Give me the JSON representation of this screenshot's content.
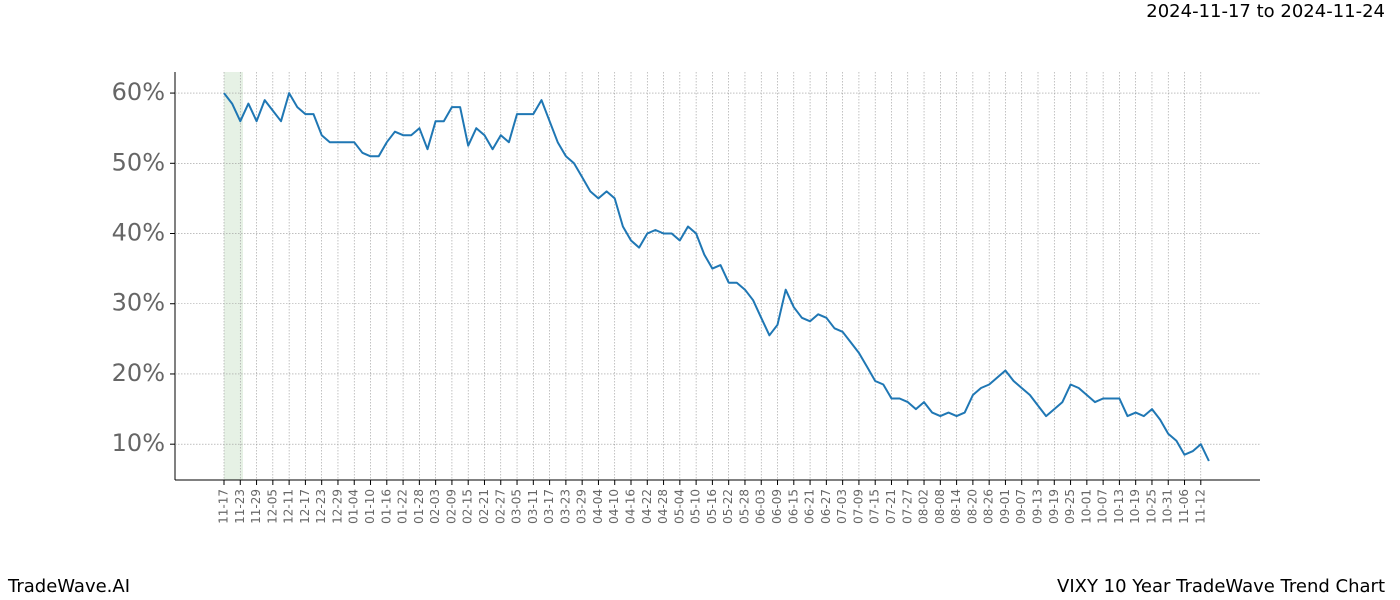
{
  "chart_data": {
    "type": "line",
    "title": "VIXY 10 Year TradeWave Trend Chart",
    "subtitle": "2024-11-17 to 2024-11-24",
    "brand": "TradeWave.AI",
    "categories": [
      "11-17",
      null,
      "11-23",
      null,
      "11-29",
      null,
      "12-05",
      null,
      "12-11",
      null,
      "12-17",
      null,
      "12-23",
      null,
      "12-29",
      null,
      "01-04",
      null,
      "01-10",
      null,
      "01-16",
      null,
      "01-22",
      null,
      "01-28",
      null,
      "02-03",
      null,
      "02-09",
      null,
      "02-15",
      null,
      "02-21",
      null,
      "02-27",
      null,
      "03-05",
      null,
      "03-11",
      null,
      "03-17",
      null,
      "03-23",
      null,
      "03-29",
      null,
      "04-04",
      null,
      "04-10",
      null,
      "04-16",
      null,
      "04-22",
      null,
      "04-28",
      null,
      "05-04",
      null,
      "05-10",
      null,
      "05-16",
      null,
      "05-22",
      null,
      "05-28",
      null,
      "06-03",
      null,
      "06-09",
      null,
      "06-15",
      null,
      "06-21",
      null,
      "06-27",
      null,
      "07-03",
      null,
      "07-09",
      null,
      "07-15",
      null,
      "07-21",
      null,
      "07-27",
      null,
      "08-02",
      null,
      "08-08",
      null,
      "08-14",
      null,
      "08-20",
      null,
      "08-26",
      null,
      "09-01",
      null,
      "09-07",
      null,
      "09-13",
      null,
      "09-19",
      null,
      "09-25",
      null,
      "10-01",
      null,
      "10-07",
      null,
      "10-13",
      null,
      "10-19",
      null,
      "10-25",
      null,
      "10-31",
      null,
      "11-06",
      null,
      "11-12",
      null
    ],
    "values": [
      60,
      58.5,
      56,
      58.5,
      56,
      59,
      57.5,
      56,
      60,
      58,
      57,
      57,
      54,
      53,
      53,
      53,
      53,
      51.5,
      51,
      51,
      53,
      54.5,
      54,
      54,
      55,
      52,
      56,
      56,
      58,
      58,
      52.5,
      55,
      54,
      52,
      54,
      53,
      57,
      57,
      57,
      59,
      56,
      53,
      51,
      50,
      48,
      46,
      45,
      46,
      45,
      41,
      39,
      38,
      40,
      40.5,
      40,
      40,
      39,
      41,
      40,
      37,
      35,
      35.5,
      33,
      33,
      32,
      30.5,
      28,
      25.5,
      27,
      32,
      29.5,
      28,
      27.5,
      28.5,
      28,
      26.5,
      26,
      24.5,
      23,
      21,
      19,
      18.5,
      16.5,
      16.5,
      16,
      15,
      16,
      14.5,
      14,
      14.5,
      14,
      14.5,
      17,
      18,
      18.5,
      19.5,
      20.5,
      19,
      18,
      17,
      15.5,
      14,
      15,
      16,
      18.5,
      18,
      17,
      16,
      16.5,
      16.5,
      16.5,
      14,
      14.5,
      14,
      15,
      13.5,
      11.5,
      10.5,
      8.5,
      9,
      10,
      7.6
    ],
    "color": "#1f77b4",
    "ylim": [
      4.9,
      63.0
    ],
    "yticks": [
      {
        "value": 10,
        "label": "10%"
      },
      {
        "value": 20,
        "label": "20%"
      },
      {
        "value": 30,
        "label": "30%"
      },
      {
        "value": 40,
        "label": "40%"
      },
      {
        "value": 50,
        "label": "50%"
      },
      {
        "value": 60,
        "label": "60%"
      }
    ],
    "grid": true
  }
}
